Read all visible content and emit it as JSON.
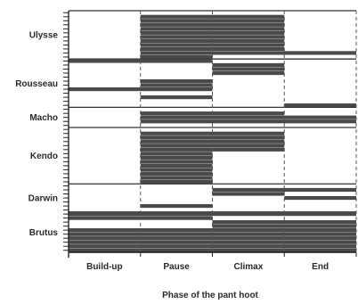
{
  "chart_data": {
    "type": "bar",
    "orientation": "horizontal",
    "title": "",
    "xlabel": "Phase of the pant hoot",
    "ylabel": "",
    "phases": [
      "Build-up",
      "Pause",
      "Climax",
      "End"
    ],
    "grid": false,
    "colors": {
      "bar": "#4a4a4a",
      "axis": "#222222"
    },
    "individuals": [
      {
        "name": "Ulysse",
        "n_rows": 12,
        "rows": [
          [],
          [
            1,
            3
          ],
          [
            1,
            3
          ],
          [
            1,
            3
          ],
          [
            1,
            3
          ],
          [
            1,
            3
          ],
          [
            1,
            3
          ],
          [
            1,
            3
          ],
          [
            1,
            3
          ],
          [
            1,
            3
          ],
          [
            1,
            4
          ],
          [
            1,
            2
          ]
        ]
      },
      {
        "name": "Rousseau",
        "n_rows": 12,
        "rows": [
          [
            0,
            2
          ],
          [
            2,
            3
          ],
          [
            2,
            3
          ],
          [
            2,
            3
          ],
          [],
          [
            1,
            2
          ],
          [
            1,
            2
          ],
          [
            0,
            2
          ],
          [],
          [
            1,
            2
          ],
          [],
          [
            3,
            4
          ]
        ]
      },
      {
        "name": "Macho",
        "n_rows": 5,
        "rows": [
          [],
          [
            1,
            3
          ],
          [
            1,
            4
          ],
          [
            1,
            4
          ],
          []
        ]
      },
      {
        "name": "Kendo",
        "n_rows": 14,
        "rows": [
          [],
          [
            1,
            3
          ],
          [
            1,
            3
          ],
          [
            1,
            3
          ],
          [
            1,
            3
          ],
          [
            1,
            3
          ],
          [
            1,
            2
          ],
          [
            1,
            2
          ],
          [
            1,
            2
          ],
          [
            1,
            2
          ],
          [
            1,
            2
          ],
          [
            1,
            2
          ],
          [
            1,
            2
          ],
          [
            1,
            2
          ]
        ]
      },
      {
        "name": "Darwin",
        "n_rows": 7,
        "rows": [
          [],
          [
            2,
            4
          ],
          [
            2,
            3
          ],
          [
            3,
            4
          ],
          [],
          [
            1,
            2
          ],
          []
        ]
      },
      {
        "name": "Brutus",
        "n_rows": 10,
        "rows": [
          [
            0,
            4
          ],
          [
            0,
            2
          ],
          [
            2,
            4
          ],
          [
            2,
            4
          ],
          [
            0,
            4
          ],
          [
            0,
            4
          ],
          [
            0,
            4
          ],
          [
            0,
            4
          ],
          [
            0,
            4
          ],
          [
            0,
            4
          ]
        ]
      }
    ]
  }
}
